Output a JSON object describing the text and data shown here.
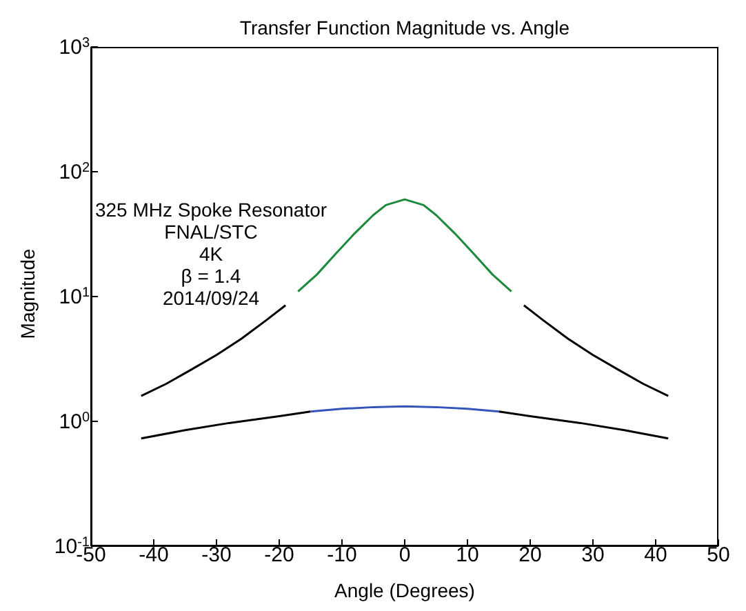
{
  "chart_data": {
    "type": "line",
    "title": "Transfer Function Magnitude vs. Angle",
    "xlabel": "Angle (Degrees)",
    "ylabel": "Magnitude",
    "log": "y",
    "grid": false,
    "marker": "none",
    "line_style": "solid",
    "xlim": [
      -50,
      50
    ],
    "xticks": [
      -50,
      -40,
      -30,
      -20,
      -10,
      0,
      10,
      20,
      30,
      40,
      50
    ],
    "ylim": [
      0.1,
      1000
    ],
    "yticks": [
      {
        "value": 0.1,
        "label": "10$^{-1}$"
      },
      {
        "value": 1,
        "label": "10$^{0}$"
      },
      {
        "value": 10,
        "label": "10$^{1}$"
      },
      {
        "value": 100,
        "label": "10$^{2}$"
      },
      {
        "value": 1000,
        "label": "10$^{3}$"
      }
    ],
    "annotations": [
      "325 MHz Spoke Resonator",
      "FNAL/STC",
      "4K",
      "β = 1.4",
      "2014/09/24"
    ],
    "series": [
      {
        "color": "#000000",
        "x": [
          -42,
          -38,
          -34,
          -30,
          -26,
          -22,
          -19
        ],
        "values": [
          1.6,
          2.0,
          2.6,
          3.4,
          4.6,
          6.5,
          8.5
        ]
      },
      {
        "color": "#1a8a3a",
        "x": [
          -17,
          -14,
          -11,
          -8,
          -5,
          -3,
          0,
          3,
          5,
          8,
          11,
          14,
          17
        ],
        "values": [
          11,
          15,
          22,
          32,
          45,
          54,
          60,
          54,
          45,
          32,
          22,
          15,
          11
        ]
      },
      {
        "color": "#000000",
        "x": [
          19,
          22,
          26,
          30,
          34,
          38,
          42
        ],
        "values": [
          8.5,
          6.5,
          4.6,
          3.4,
          2.6,
          2.0,
          1.6
        ]
      },
      {
        "color": "#000000",
        "x": [
          -42,
          -35,
          -28,
          -20,
          -15
        ],
        "values": [
          0.73,
          0.85,
          0.97,
          1.1,
          1.2
        ]
      },
      {
        "color": "#3355bb",
        "x": [
          -15,
          -10,
          -5,
          0,
          5,
          10,
          15
        ],
        "values": [
          1.2,
          1.26,
          1.3,
          1.32,
          1.3,
          1.26,
          1.2
        ]
      },
      {
        "color": "#000000",
        "x": [
          15,
          20,
          28,
          35,
          42
        ],
        "values": [
          1.2,
          1.1,
          0.97,
          0.85,
          0.73
        ]
      }
    ]
  }
}
